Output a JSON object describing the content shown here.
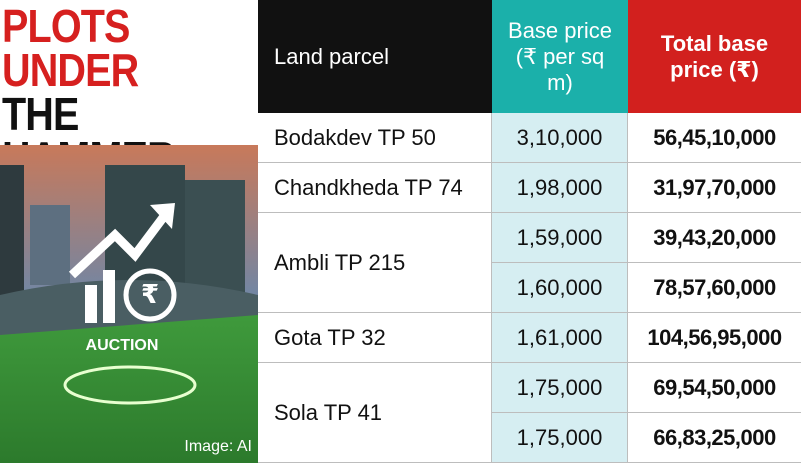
{
  "title": {
    "lines": [
      "PLOTS",
      "UNDER",
      "THE",
      "HAMMER"
    ]
  },
  "image": {
    "badge": "AUCTION",
    "credit": "Image: AI"
  },
  "table": {
    "headers": [
      "Land parcel",
      "Base price (₹ per sq m)",
      "Total base price (₹)"
    ],
    "parcels": [
      {
        "name": "Bodakdev TP 50",
        "rows": [
          [
            "3,10,000",
            "56,45,10,000"
          ]
        ]
      },
      {
        "name": "Chandkheda TP 74",
        "rows": [
          [
            "1,98,000",
            "31,97,70,000"
          ]
        ]
      },
      {
        "name": "Ambli TP 215",
        "rows": [
          [
            "1,59,000",
            "39,43,20,000"
          ],
          [
            "1,60,000",
            "78,57,60,000"
          ]
        ]
      },
      {
        "name": "Gota TP 32",
        "rows": [
          [
            "1,61,000",
            "104,56,95,000"
          ]
        ]
      },
      {
        "name": "Sola TP 41",
        "rows": [
          [
            "1,75,000",
            "69,54,50,000"
          ],
          [
            "1,75,000",
            "66,83,25,000"
          ]
        ]
      }
    ]
  }
}
